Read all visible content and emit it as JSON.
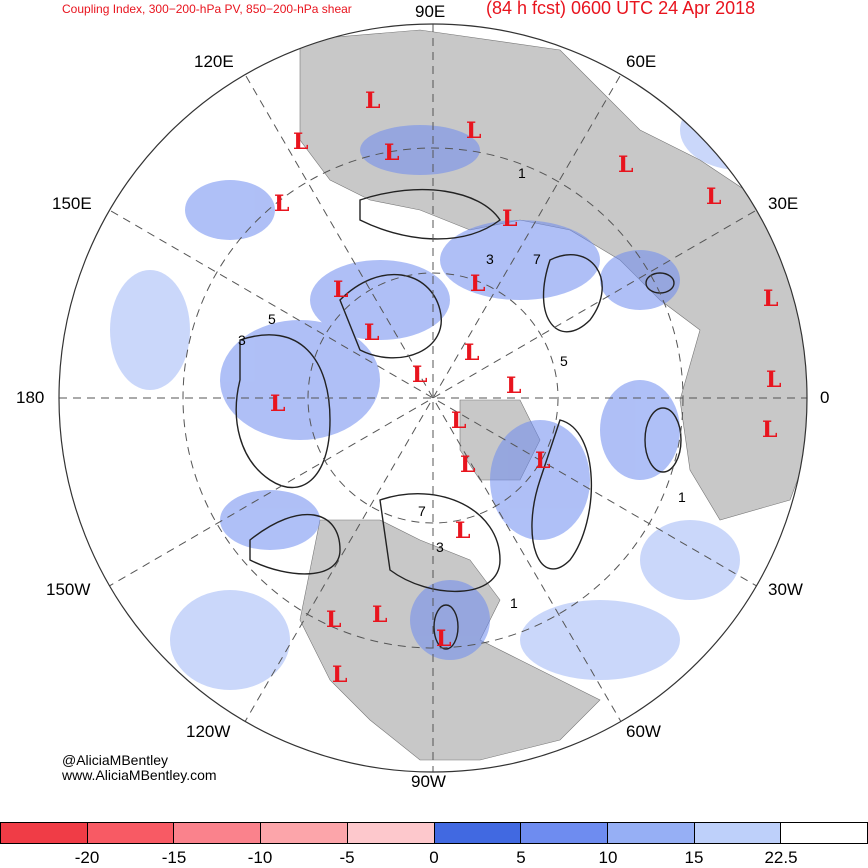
{
  "header": {
    "subtitle": "Coupling Index, 300−200-hPa PV, 850−200-hPa shear",
    "title": "(84 h fcst) 0600 UTC 24 Apr 2018"
  },
  "longitude_labels": {
    "e90": "90E",
    "e60": "60E",
    "e30": "30E",
    "zero": "0",
    "w30": "30W",
    "w60": "60W",
    "w90": "90W",
    "w120": "120W",
    "w150": "150W",
    "e180": "180",
    "e150": "150E",
    "e120": "120E"
  },
  "map": {
    "projection": "north polar stereographic",
    "low_marker": "L",
    "low_count": 25,
    "contour_labels": [
      "1",
      "3",
      "5",
      "7"
    ],
    "land_color": "#c8c8c8",
    "ocean_color": "#ffffff",
    "low_color": "#e8141e"
  },
  "credit": {
    "handle": "@AliciaMBentley",
    "site": "www.AliciaMBentley.com"
  },
  "colorbar": {
    "colors": [
      "#f03c46",
      "#f85a64",
      "#fa828c",
      "#fca5aa",
      "#fdc8cc",
      "#4169e1",
      "#6e8cf0",
      "#96aff5",
      "#bed0fa",
      "#ffffff"
    ],
    "ticks": [
      "-20",
      "-15",
      "-10",
      "-5",
      "0",
      "5",
      "10",
      "15",
      "22.5"
    ]
  }
}
